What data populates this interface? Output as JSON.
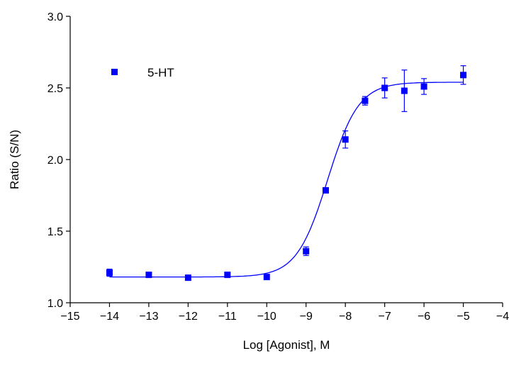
{
  "chart_data": {
    "type": "scatter",
    "xlabel": "Log [Agonist], M",
    "ylabel": "Ratio (S/N)",
    "xlim": [
      -15,
      -4
    ],
    "ylim": [
      1.0,
      3.0
    ],
    "x_ticks": [
      -15,
      -14,
      -13,
      -12,
      -11,
      -10,
      -9,
      -8,
      -7,
      -6,
      -5,
      -4
    ],
    "y_ticks": [
      1.0,
      1.5,
      2.0,
      2.5,
      3.0
    ],
    "x_tick_labels": [
      "−15",
      "−14",
      "−13",
      "−12",
      "−11",
      "−10",
      "−9",
      "−8",
      "−7",
      "−6",
      "−5",
      "−4"
    ],
    "y_tick_labels": [
      "1.0",
      "1.5",
      "2.0",
      "2.5",
      "3.0"
    ],
    "grid": false,
    "legend_position": "top-left",
    "series": [
      {
        "name": "5-HT",
        "color": "#0000ff",
        "marker": "square",
        "points": [
          {
            "x": -14,
            "y": 1.21,
            "err": 0.025
          },
          {
            "x": -13,
            "y": 1.195,
            "err": 0.015
          },
          {
            "x": -12,
            "y": 1.175,
            "err": 0.01
          },
          {
            "x": -11,
            "y": 1.195,
            "err": 0.015
          },
          {
            "x": -10,
            "y": 1.18,
            "err": 0.015
          },
          {
            "x": -9,
            "y": 1.36,
            "err": 0.03
          },
          {
            "x": -8.5,
            "y": 1.785,
            "err": 0.01
          },
          {
            "x": -8,
            "y": 2.14,
            "err": 0.06
          },
          {
            "x": -7.5,
            "y": 2.41,
            "err": 0.03
          },
          {
            "x": -7,
            "y": 2.5,
            "err": 0.07
          },
          {
            "x": -6.5,
            "y": 2.48,
            "err": 0.145
          },
          {
            "x": -6,
            "y": 2.51,
            "err": 0.055
          },
          {
            "x": -5,
            "y": 2.59,
            "err": 0.065
          }
        ],
        "fit": {
          "model": "sigmoidal dose-response",
          "bottom": 1.18,
          "top": 2.54,
          "logEC50": -8.45,
          "hill": 1.1
        }
      }
    ]
  }
}
